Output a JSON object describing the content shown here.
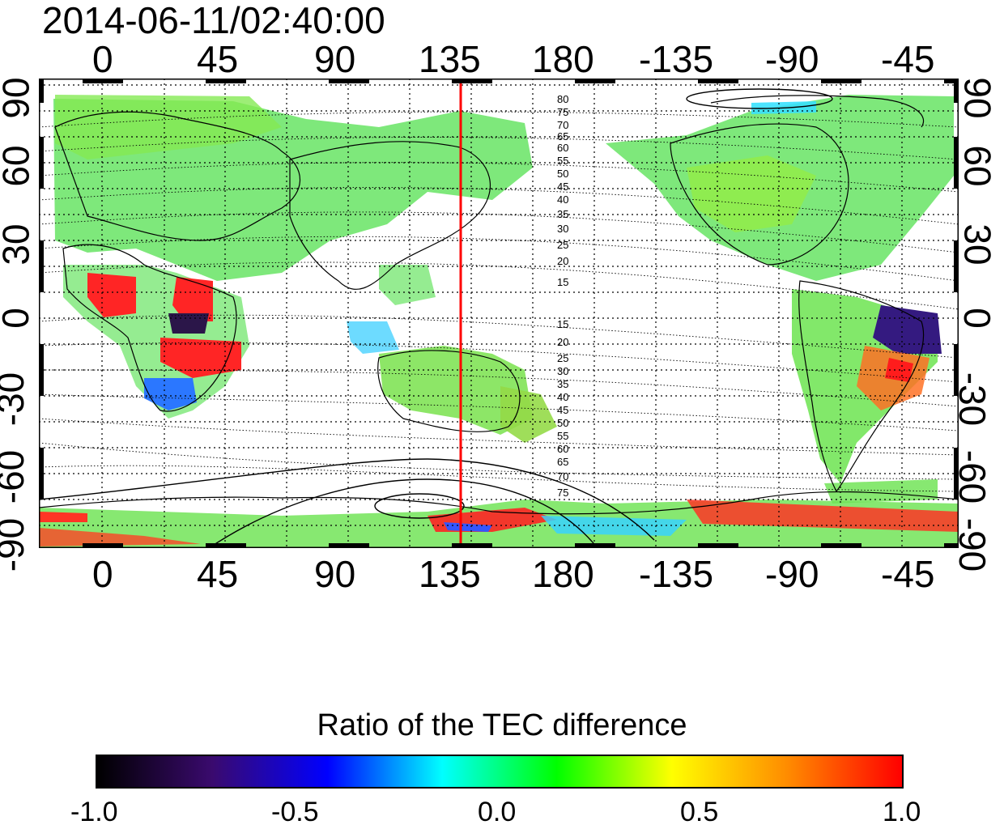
{
  "timestamp": "2014-06-11/02:40:00",
  "map": {
    "projection": "equirectangular",
    "lon_center": 160,
    "lon_tick_labels": [
      "0",
      "45",
      "90",
      "135",
      "180",
      "-135",
      "-90",
      "-45"
    ],
    "lat_tick_labels": [
      "90",
      "60",
      "30",
      "0",
      "-30",
      "-60",
      "-90"
    ],
    "grid": "dotted",
    "marker_line": {
      "longitude": 140,
      "color": "#ff0000"
    },
    "mlat_labels_north": [
      "80",
      "75",
      "70",
      "65",
      "60",
      "55",
      "50",
      "45",
      "40",
      "35",
      "30",
      "25",
      "20",
      "15"
    ],
    "mlat_labels_south": [
      "15",
      "20",
      "25",
      "30",
      "35",
      "40",
      "45",
      "50",
      "55",
      "60",
      "65",
      "70",
      "75"
    ],
    "frame_color": "#000000"
  },
  "colorbar": {
    "title": "Ratio of the TEC difference",
    "labels": [
      "-1.0",
      "-0.5",
      "0.0",
      "0.5",
      "1.0"
    ],
    "range": [
      -1.0,
      1.0
    ],
    "colors": [
      "#000000",
      "#3a0a6e",
      "#0000ff",
      "#00ffff",
      "#00ff00",
      "#ffff00",
      "#ff8c00",
      "#ff0000"
    ]
  }
}
